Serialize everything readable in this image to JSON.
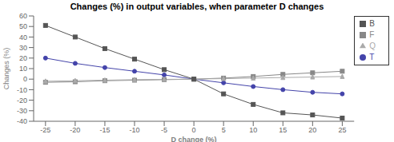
{
  "chart_data": {
    "type": "line",
    "title": "Changes (%) in output variables, when parameter D changes",
    "x_label": "D change (%)",
    "y_label": "Changes (%)",
    "x": [
      -25,
      -20,
      -15,
      -10,
      -5,
      0,
      5,
      10,
      15,
      20,
      25
    ],
    "series": [
      {
        "name": "T",
        "color": "#4444aa",
        "marker": "circle",
        "values": [
          20.0,
          15.0,
          11.0,
          7.5,
          4.0,
          0.0,
          -3.5,
          -7.0,
          -10.0,
          -12.5,
          -14.0
        ]
      },
      {
        "name": "F",
        "color": "#888888",
        "marker": "square",
        "values": [
          -3.0,
          -2.5,
          -1.5,
          -1.0,
          -0.5,
          0.0,
          1.0,
          2.5,
          4.5,
          6.0,
          7.5
        ]
      },
      {
        "name": "Q",
        "color": "#aaaaaa",
        "marker": "triangle",
        "values": [
          -2.0,
          -1.5,
          -1.0,
          -0.5,
          -0.2,
          0.0,
          0.5,
          1.0,
          1.5,
          2.0,
          2.5
        ]
      },
      {
        "name": "B",
        "color": "#555555",
        "marker": "square",
        "values": [
          51.0,
          40.0,
          29.0,
          19.0,
          9.0,
          0.0,
          -14.0,
          -24.0,
          -32.0,
          -34.0,
          -37.0
        ]
      }
    ],
    "xlim": [
      -27,
      27
    ],
    "xticks": [
      -25,
      -20,
      -15,
      -10,
      -5,
      0,
      5,
      10,
      15,
      20,
      25
    ],
    "ylim": [
      -40,
      60
    ],
    "yticks": [
      -40,
      -30,
      -20,
      -10,
      0,
      10,
      20,
      30,
      40,
      50,
      60
    ],
    "grid": false,
    "legend": "right"
  }
}
